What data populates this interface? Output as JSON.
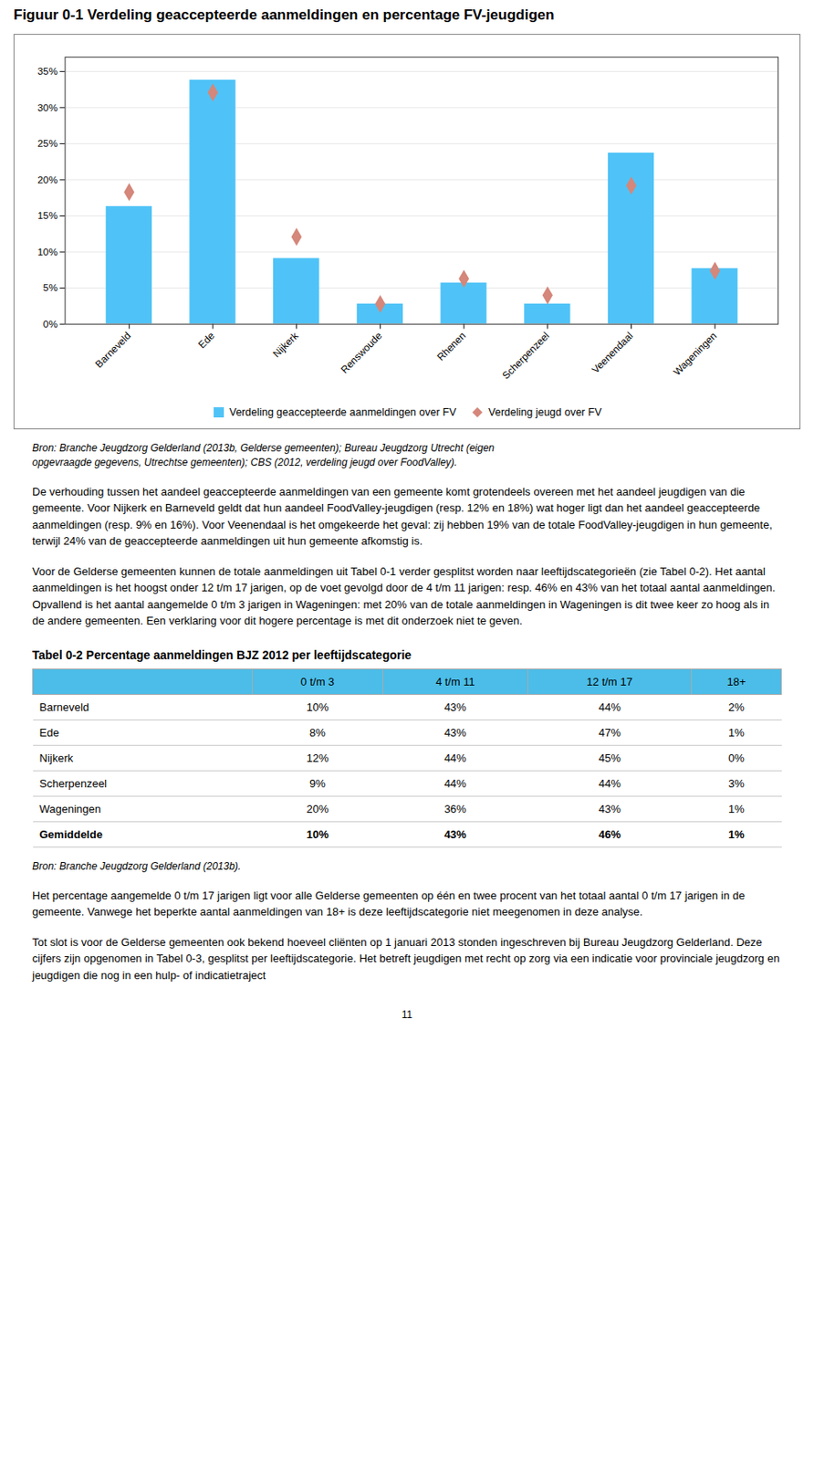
{
  "chart_data": {
    "type": "bar",
    "title": "Figuur 0-1 Verdeling geaccepteerde aanmeldingen en percentage FV-jeugdigen",
    "categories": [
      "Barneveld",
      "Ede",
      "Nijkerk",
      "Renswoude",
      "Rhenen",
      "Scherpenzeel",
      "Veenendaal",
      "Wageningen"
    ],
    "series": [
      {
        "name": "Verdeling geaccepteerde aanmeldingen over FV",
        "type": "bar",
        "color": "#4FC3F7",
        "values": [
          0.163,
          0.338,
          0.091,
          0.028,
          0.057,
          0.028,
          0.237,
          0.077
        ]
      },
      {
        "name": "Verdeling jeugd over FV",
        "type": "scatter",
        "marker": "diamond",
        "color": "#D4877A",
        "values": [
          0.183,
          0.321,
          0.121,
          0.028,
          0.063,
          0.04,
          0.192,
          0.074
        ]
      }
    ],
    "ylim": [
      0,
      0.37
    ],
    "yticks": [
      {
        "value": 0.0,
        "label": "0%"
      },
      {
        "value": 0.05,
        "label": "5%"
      },
      {
        "value": 0.1,
        "label": "10%"
      },
      {
        "value": 0.15,
        "label": "15%"
      },
      {
        "value": 0.2,
        "label": "20%"
      },
      {
        "value": 0.25,
        "label": "25%"
      },
      {
        "value": 0.3,
        "label": "30%"
      },
      {
        "value": 0.35,
        "label": "35%"
      }
    ],
    "grid": true,
    "legend": "bottom"
  },
  "source": "Bron: Branche Jeugdzorg Gelderland (2013b, Gelderse gemeenten); Bureau Jeugdzorg Utrecht (eigen\nopgevraagde gegevens, Utrechtse gemeenten); CBS (2012, verdeling jeugd over FoodValley).",
  "paragraphs": [
    "De verhouding tussen het aandeel geaccepteerde aanmeldingen van een gemeente komt grotendeels overeen met het aandeel jeugdigen van die gemeente. Voor Nijkerk en Barneveld geldt dat hun aandeel FoodValley-jeugdigen (resp. 12% en 18%) wat hoger ligt dan het aandeel geaccepteerde aanmeldingen (resp. 9% en 16%). Voor Veenendaal is het omgekeerde het geval: zij hebben 19% van de totale FoodValley-jeugdigen in hun gemeente, terwijl 24% van de geaccepteerde aanmeldingen uit hun gemeente afkomstig is.",
    "Voor de Gelderse gemeenten kunnen de totale aanmeldingen uit Tabel 0-1 verder gesplitst worden naar leeftijdscategorieën (zie Tabel 0-2). Het aantal aanmeldingen is het hoogst onder 12 t/m 17 jarigen, op de voet gevolgd door de 4 t/m 11 jarigen: resp. 46% en 43% van het totaal aantal aanmeldingen. Opvallend is het aantal aangemelde 0 t/m 3 jarigen in Wageningen: met 20% van de totale aanmeldingen in Wageningen is dit twee keer zo hoog als in de andere gemeenten. Een verklaring voor dit hogere percentage is met dit onderzoek niet te geven."
  ],
  "table": {
    "title": "Tabel 0-2 Percentage aanmeldingen BJZ 2012 per leeftijdscategorie",
    "columns": [
      "0 t/m 3",
      "4 t/m 11",
      "12 t/m 17",
      "18+"
    ],
    "header_color": "#4BBDE8",
    "rows": [
      [
        "Barneveld",
        "10%",
        "43%",
        "44%",
        "2%"
      ],
      [
        "Ede",
        "8%",
        "43%",
        "47%",
        "1%"
      ],
      [
        "Nijkerk",
        "12%",
        "44%",
        "45%",
        "0%"
      ],
      [
        "Scherpenzeel",
        "9%",
        "44%",
        "44%",
        "3%"
      ],
      [
        "Wageningen",
        "20%",
        "36%",
        "43%",
        "1%"
      ],
      [
        "Gemiddelde",
        "10%",
        "43%",
        "46%",
        "1%"
      ]
    ],
    "source": "Bron: Branche Jeugdzorg Gelderland (2013b)."
  },
  "paragraphs_after_table": [
    "Het percentage aangemelde 0 t/m 17 jarigen ligt voor alle Gelderse gemeenten op één en twee procent van het totaal aantal 0 t/m 17 jarigen in de gemeente. Vanwege het beperkte aantal aanmeldingen van 18+ is deze leeftijdscategorie niet meegenomen in deze analyse.",
    "Tot slot is voor de Gelderse gemeenten ook bekend hoeveel cliënten op 1 januari 2013 stonden ingeschreven bij Bureau Jeugdzorg Gelderland. Deze cijfers zijn opgenomen in Tabel 0-3, gesplitst per leeftijdscategorie. Het betreft jeugdigen met recht op zorg via een indicatie voor provinciale jeugdzorg en jeugdigen die nog in een hulp- of indicatietraject"
  ],
  "page_number": "11"
}
